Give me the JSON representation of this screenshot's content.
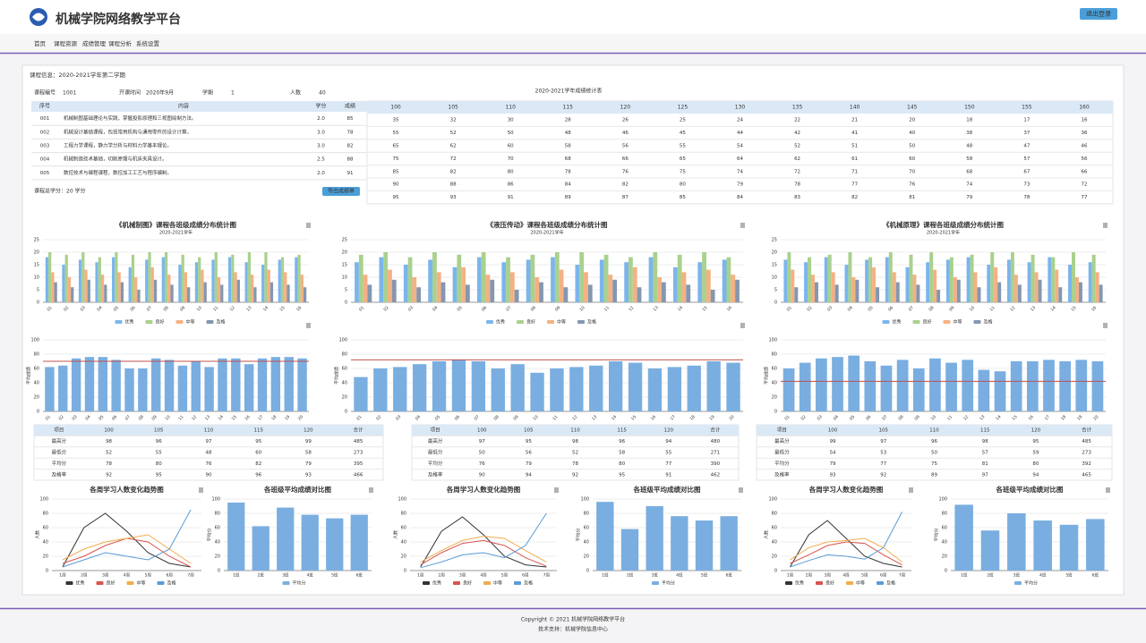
{
  "header": {
    "title": "机械学院网络教学平台",
    "button": "退出登录"
  },
  "nav": [
    "首页",
    "课程资源",
    "成绩管理",
    "课程分析",
    "系统设置"
  ],
  "panel": {
    "title": "课程信息：2020-2021学年第二学期",
    "filters": [
      "课程编号",
      "1001",
      "开课时间",
      "2020年9月",
      "学期",
      "1",
      "人数",
      "40"
    ],
    "caption": "2020-2021学年成绩统计表",
    "summary": "课程总学分：20 学分",
    "button": "导出成绩单"
  },
  "info_table": {
    "header": [
      "序号",
      "内容",
      "学分",
      "成绩"
    ],
    "rows": [
      [
        "001",
        "机械制图基础理论与实践，掌握投影原理和三视图绘制方法。",
        "2.0",
        "85"
      ],
      [
        "002",
        "机械设计基础课程，包括常用机构与通用零件的设计计算。",
        "3.0",
        "78"
      ],
      [
        "003",
        "工程力学课程，静力学分析与材料力学基本理论。",
        "3.0",
        "82"
      ],
      [
        "004",
        "机械制造技术基础，切削原理与机床夹具设计。",
        "2.5",
        "88"
      ],
      [
        "005",
        "数控技术与编程课程，数控加工工艺与程序编制。",
        "2.0",
        "91"
      ]
    ]
  },
  "score_table": {
    "header": [
      "100",
      "105",
      "110",
      "115",
      "120",
      "125",
      "130",
      "135",
      "140",
      "145",
      "150",
      "155",
      "160"
    ],
    "rows": [
      [
        35,
        32,
        30,
        28,
        26,
        25,
        24,
        22,
        21,
        20,
        18,
        17,
        16
      ],
      [
        55,
        52,
        50,
        48,
        46,
        45,
        44,
        42,
        41,
        40,
        38,
        37,
        36
      ],
      [
        65,
        62,
        60,
        58,
        56,
        55,
        54,
        52,
        51,
        50,
        48,
        47,
        46
      ],
      [
        75,
        72,
        70,
        68,
        66,
        65,
        64,
        62,
        61,
        60,
        58,
        57,
        56
      ],
      [
        85,
        82,
        80,
        78,
        76,
        75,
        74,
        72,
        71,
        70,
        68,
        67,
        66
      ],
      [
        90,
        88,
        86,
        84,
        82,
        80,
        79,
        78,
        77,
        76,
        74,
        73,
        72
      ],
      [
        95,
        93,
        91,
        89,
        87,
        85,
        84,
        83,
        82,
        81,
        79,
        78,
        77
      ]
    ]
  },
  "chart_data": [
    {
      "type": "bar",
      "title": "《机械制图》课程各班级成绩分布统计图",
      "subtitle": "2020-2021学年",
      "categories": [
        "01",
        "02",
        "03",
        "04",
        "05",
        "06",
        "07",
        "08",
        "09",
        "10",
        "11",
        "12",
        "13",
        "14",
        "15",
        "16"
      ],
      "series": [
        {
          "name": "优秀",
          "color": "#7cb5ec",
          "values": [
            18,
            15,
            17,
            16,
            18,
            14,
            17,
            18,
            15,
            16,
            17,
            18,
            16,
            15,
            17,
            18
          ]
        },
        {
          "name": "良好",
          "color": "#a9d18e",
          "values": [
            20,
            19,
            20,
            18,
            20,
            19,
            20,
            20,
            19,
            18,
            20,
            19,
            20,
            20,
            18,
            19
          ]
        },
        {
          "name": "中等",
          "color": "#f4b183",
          "values": [
            12,
            10,
            13,
            11,
            12,
            10,
            14,
            11,
            12,
            13,
            10,
            12,
            11,
            13,
            12,
            11
          ]
        },
        {
          "name": "及格",
          "color": "#8497b0",
          "values": [
            8,
            6,
            9,
            7,
            8,
            5,
            9,
            7,
            6,
            8,
            7,
            9,
            6,
            8,
            7,
            6
          ]
        }
      ],
      "ylim": [
        0,
        25
      ],
      "yticks": [
        0,
        5,
        10,
        15,
        20,
        25
      ]
    },
    {
      "type": "bar",
      "y_label": "平均成绩",
      "categories": [
        "01",
        "02",
        "03",
        "04",
        "05",
        "06",
        "07",
        "08",
        "09",
        "10",
        "11",
        "12",
        "13",
        "14",
        "15",
        "16",
        "17",
        "18",
        "19",
        "20"
      ],
      "values": [
        62,
        64,
        74,
        76,
        76,
        72,
        60,
        60,
        74,
        72,
        64,
        70,
        62,
        74,
        74,
        66,
        74,
        76,
        76,
        74
      ],
      "color": "#7aaee0",
      "ylim": [
        0,
        100
      ],
      "yticks": [
        0,
        20,
        40,
        60,
        80,
        100
      ],
      "mark_line": 70,
      "mark_line_color": "#c0504d"
    },
    {
      "type": "line",
      "title": "各周学习人数变化趋势图",
      "y_label": "人数",
      "categories": [
        "1周",
        "2周",
        "3周",
        "4周",
        "5周",
        "6周",
        "7周"
      ],
      "series": [
        {
          "name": "优秀",
          "color": "#333333",
          "values": [
            5,
            60,
            80,
            55,
            25,
            10,
            5
          ]
        },
        {
          "name": "良好",
          "color": "#d9534f",
          "values": [
            10,
            20,
            35,
            45,
            40,
            20,
            5
          ]
        },
        {
          "name": "中等",
          "color": "#f0ad4e",
          "values": [
            15,
            30,
            40,
            45,
            50,
            30,
            10
          ]
        },
        {
          "name": "及格",
          "color": "#5b9bd5",
          "values": [
            5,
            15,
            25,
            20,
            15,
            30,
            85
          ]
        }
      ],
      "ylim": [
        0,
        100
      ],
      "yticks": [
        0,
        20,
        40,
        60,
        80,
        100
      ]
    },
    {
      "type": "bar",
      "title": "各班级平均成绩对比图",
      "y_label": "平均分",
      "categories": [
        "1班",
        "2班",
        "3班",
        "4班",
        "5班",
        "6班"
      ],
      "series": [
        {
          "name": "平均分",
          "color": "#7aaee0",
          "values": [
            95,
            62,
            88,
            78,
            73,
            78
          ]
        }
      ],
      "ylim": [
        0,
        100
      ],
      "yticks": [
        0,
        20,
        40,
        60,
        80,
        100
      ]
    },
    {
      "type": "bar",
      "title": "《液压传动》课程各班级成绩分布统计图",
      "subtitle": "2020-2021学年",
      "categories": [
        "01",
        "02",
        "03",
        "04",
        "05",
        "06",
        "07",
        "08",
        "09",
        "10",
        "11",
        "12",
        "13",
        "14",
        "15",
        "16"
      ],
      "series": [
        {
          "name": "优秀",
          "color": "#7cb5ec",
          "values": [
            16,
            18,
            15,
            17,
            14,
            18,
            16,
            17,
            18,
            15,
            17,
            16,
            18,
            14,
            16,
            17
          ]
        },
        {
          "name": "良好",
          "color": "#a9d18e",
          "values": [
            19,
            20,
            18,
            20,
            19,
            20,
            18,
            19,
            20,
            20,
            19,
            18,
            20,
            19,
            20,
            18
          ]
        },
        {
          "name": "中等",
          "color": "#f4b183",
          "values": [
            11,
            13,
            10,
            12,
            14,
            11,
            12,
            10,
            13,
            12,
            11,
            14,
            10,
            12,
            13,
            11
          ]
        },
        {
          "name": "及格",
          "color": "#8497b0",
          "values": [
            7,
            9,
            6,
            8,
            7,
            9,
            5,
            8,
            6,
            7,
            9,
            6,
            8,
            7,
            5,
            9
          ]
        }
      ],
      "ylim": [
        0,
        25
      ],
      "yticks": [
        0,
        5,
        10,
        15,
        20,
        25
      ]
    },
    {
      "type": "bar",
      "y_label": "平均成绩",
      "categories": [
        "01",
        "02",
        "03",
        "04",
        "05",
        "06",
        "07",
        "08",
        "09",
        "10",
        "11",
        "12",
        "13",
        "14",
        "15",
        "16",
        "17",
        "18",
        "19",
        "20"
      ],
      "values": [
        48,
        60,
        62,
        66,
        70,
        72,
        70,
        60,
        66,
        54,
        60,
        62,
        64,
        70,
        68,
        60,
        62,
        64,
        70,
        68
      ],
      "color": "#7aaee0",
      "ylim": [
        0,
        100
      ],
      "yticks": [
        0,
        20,
        40,
        60,
        80,
        100
      ],
      "mark_line": 72,
      "mark_line_color": "#c0504d"
    },
    {
      "type": "line",
      "title": "各周学习人数变化趋势图",
      "y_label": "人数",
      "categories": [
        "1周",
        "2周",
        "3周",
        "4周",
        "5周",
        "6周",
        "7周"
      ],
      "series": [
        {
          "name": "优秀",
          "color": "#333333",
          "values": [
            5,
            55,
            75,
            50,
            20,
            8,
            5
          ]
        },
        {
          "name": "良好",
          "color": "#d9534f",
          "values": [
            8,
            25,
            38,
            42,
            35,
            18,
            6
          ]
        },
        {
          "name": "中等",
          "color": "#f0ad4e",
          "values": [
            12,
            28,
            42,
            48,
            45,
            28,
            12
          ]
        },
        {
          "name": "及格",
          "color": "#5b9bd5",
          "values": [
            4,
            12,
            22,
            25,
            18,
            35,
            80
          ]
        }
      ],
      "ylim": [
        0,
        100
      ],
      "yticks": [
        0,
        20,
        40,
        60,
        80,
        100
      ]
    },
    {
      "type": "bar",
      "title": "各班级平均成绩对比图",
      "y_label": "平均分",
      "categories": [
        "1班",
        "2班",
        "3班",
        "4班",
        "5班",
        "6班"
      ],
      "series": [
        {
          "name": "平均分",
          "color": "#7aaee0",
          "values": [
            96,
            58,
            90,
            76,
            70,
            76
          ]
        }
      ],
      "ylim": [
        0,
        100
      ],
      "yticks": [
        0,
        20,
        40,
        60,
        80,
        100
      ]
    },
    {
      "type": "bar",
      "title": "《机械原理》课程各班级成绩分布统计图",
      "subtitle": "2020-2021学年",
      "categories": [
        "01",
        "02",
        "03",
        "04",
        "05",
        "06",
        "07",
        "08",
        "09",
        "10",
        "11",
        "12",
        "13",
        "14",
        "15",
        "16"
      ],
      "series": [
        {
          "name": "优秀",
          "color": "#7cb5ec",
          "values": [
            17,
            16,
            18,
            15,
            17,
            18,
            14,
            16,
            17,
            18,
            15,
            17,
            16,
            18,
            15,
            16
          ]
        },
        {
          "name": "良好",
          "color": "#a9d18e",
          "values": [
            20,
            18,
            19,
            20,
            18,
            20,
            19,
            20,
            18,
            19,
            20,
            20,
            19,
            18,
            20,
            19
          ]
        },
        {
          "name": "中等",
          "color": "#f4b183",
          "values": [
            13,
            11,
            12,
            10,
            14,
            12,
            11,
            13,
            10,
            12,
            14,
            11,
            12,
            13,
            10,
            12
          ]
        },
        {
          "name": "及格",
          "color": "#8497b0",
          "values": [
            6,
            8,
            7,
            9,
            6,
            8,
            7,
            5,
            9,
            6,
            8,
            7,
            9,
            6,
            8,
            7
          ]
        }
      ],
      "ylim": [
        0,
        25
      ],
      "yticks": [
        0,
        5,
        10,
        15,
        20,
        25
      ]
    },
    {
      "type": "bar",
      "y_label": "平均成绩",
      "categories": [
        "01",
        "02",
        "03",
        "04",
        "05",
        "06",
        "07",
        "08",
        "09",
        "10",
        "11",
        "12",
        "13",
        "14",
        "15",
        "16",
        "17",
        "18",
        "19",
        "20"
      ],
      "values": [
        60,
        68,
        74,
        76,
        78,
        70,
        64,
        72,
        60,
        74,
        68,
        72,
        58,
        56,
        70,
        70,
        72,
        70,
        72,
        70
      ],
      "color": "#7aaee0",
      "ylim": [
        0,
        100
      ],
      "yticks": [
        0,
        20,
        40,
        60,
        80,
        100
      ],
      "mark_line": 42,
      "mark_line_color": "#c0504d"
    },
    {
      "type": "line",
      "title": "各周学习人数变化趋势图",
      "y_label": "人数",
      "categories": [
        "1周",
        "2周",
        "3周",
        "4周",
        "5周",
        "6周",
        "7周"
      ],
      "series": [
        {
          "name": "优秀",
          "color": "#333333",
          "values": [
            5,
            50,
            70,
            45,
            20,
            10,
            5
          ]
        },
        {
          "name": "良好",
          "color": "#d9534f",
          "values": [
            10,
            22,
            35,
            40,
            38,
            22,
            8
          ]
        },
        {
          "name": "中等",
          "color": "#f0ad4e",
          "values": [
            15,
            32,
            40,
            42,
            45,
            32,
            12
          ]
        },
        {
          "name": "及格",
          "color": "#5b9bd5",
          "values": [
            5,
            14,
            22,
            20,
            16,
            32,
            82
          ]
        }
      ],
      "ylim": [
        0,
        100
      ],
      "yticks": [
        0,
        20,
        40,
        60,
        80,
        100
      ]
    },
    {
      "type": "bar",
      "title": "各班级平均成绩对比图",
      "y_label": "平均分",
      "categories": [
        "1班",
        "2班",
        "3班",
        "4班",
        "5班",
        "6班"
      ],
      "series": [
        {
          "name": "平均分",
          "color": "#7aaee0",
          "values": [
            92,
            56,
            80,
            70,
            64,
            72
          ]
        }
      ],
      "ylim": [
        0,
        100
      ],
      "yticks": [
        0,
        20,
        40,
        60,
        80,
        100
      ]
    }
  ],
  "tables": [
    {
      "header": [
        "项目",
        "100",
        "105",
        "110",
        "115",
        "120",
        "合计"
      ],
      "rows": [
        [
          "最高分",
          98,
          96,
          97,
          95,
          99,
          485
        ],
        [
          "最低分",
          52,
          55,
          48,
          60,
          58,
          273
        ],
        [
          "平均分",
          78,
          80,
          76,
          82,
          79,
          395
        ],
        [
          "及格率",
          92,
          95,
          90,
          96,
          93,
          466
        ]
      ]
    },
    {
      "header": [
        "项目",
        "100",
        "105",
        "110",
        "115",
        "120",
        "合计"
      ],
      "rows": [
        [
          "最高分",
          97,
          95,
          98,
          96,
          94,
          480
        ],
        [
          "最低分",
          50,
          56,
          52,
          58,
          55,
          271
        ],
        [
          "平均分",
          76,
          79,
          78,
          80,
          77,
          390
        ],
        [
          "及格率",
          90,
          94,
          92,
          95,
          91,
          462
        ]
      ]
    },
    {
      "header": [
        "项目",
        "100",
        "105",
        "110",
        "115",
        "120",
        "合计"
      ],
      "rows": [
        [
          "最高分",
          99,
          97,
          96,
          98,
          95,
          485
        ],
        [
          "最低分",
          54,
          53,
          50,
          57,
          59,
          273
        ],
        [
          "平均分",
          79,
          77,
          75,
          81,
          80,
          392
        ],
        [
          "及格率",
          93,
          92,
          89,
          97,
          94,
          465
        ]
      ]
    }
  ],
  "footer": [
    "Copyright © 2021 机械学院网络教学平台",
    "技术支持：机械学院信息中心"
  ]
}
